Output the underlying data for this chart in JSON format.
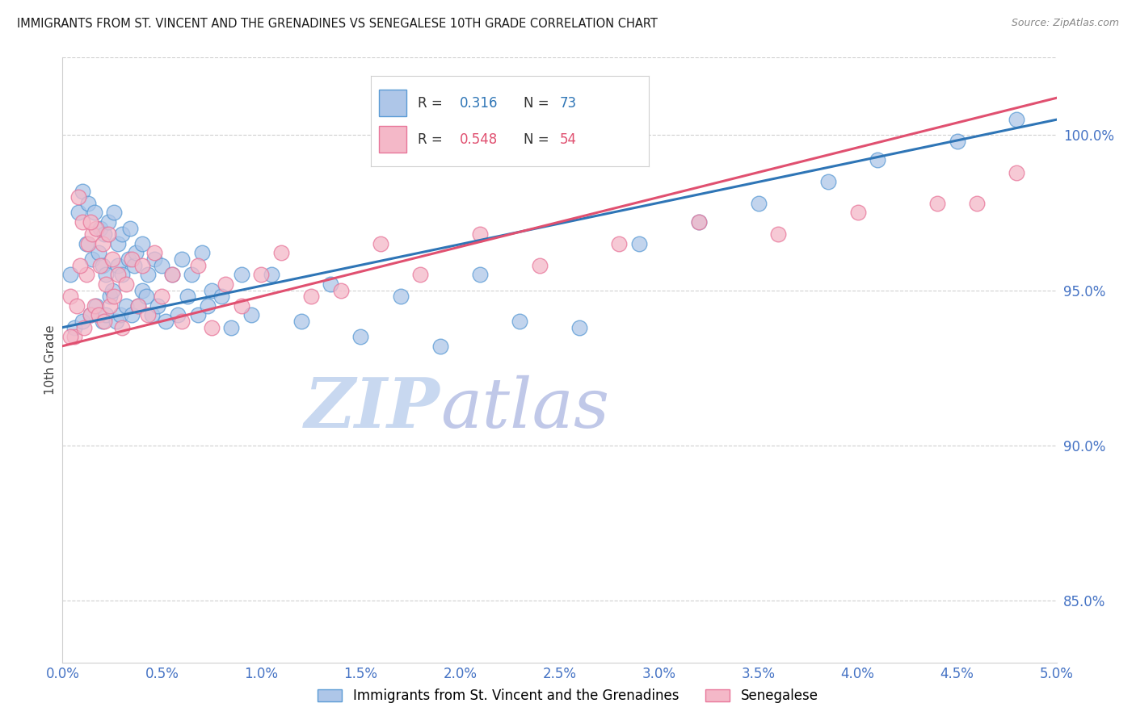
{
  "title": "IMMIGRANTS FROM ST. VINCENT AND THE GRENADINES VS SENEGALESE 10TH GRADE CORRELATION CHART",
  "source_text": "Source: ZipAtlas.com",
  "ylabel": "10th Grade",
  "x_min": 0.0,
  "x_max": 5.0,
  "y_min": 83.0,
  "y_max": 102.5,
  "yticks": [
    85.0,
    90.0,
    95.0,
    100.0
  ],
  "xticks": [
    0.0,
    0.5,
    1.0,
    1.5,
    2.0,
    2.5,
    3.0,
    3.5,
    4.0,
    4.5,
    5.0
  ],
  "blue_R": 0.316,
  "blue_N": 73,
  "pink_R": 0.548,
  "pink_N": 54,
  "blue_color": "#aec6e8",
  "blue_edge": "#5b9bd5",
  "pink_color": "#f4b8c8",
  "pink_edge": "#e8769a",
  "blue_line_color": "#2e75b6",
  "pink_line_color": "#e05070",
  "grid_color": "#d0d0d0",
  "axis_color": "#4472c4",
  "watermark_zip_color": "#c8d8f0",
  "watermark_atlas_color": "#c0c8e8",
  "legend_label_blue": "Immigrants from St. Vincent and the Grenadines",
  "legend_label_pink": "Senegalese",
  "blue_line_x0": 0.0,
  "blue_line_y0": 93.8,
  "blue_line_x1": 5.0,
  "blue_line_y1": 100.5,
  "pink_line_x0": 0.0,
  "pink_line_y0": 93.2,
  "pink_line_x1": 5.0,
  "pink_line_y1": 101.2,
  "blue_x": [
    0.04,
    0.06,
    0.08,
    0.1,
    0.1,
    0.12,
    0.13,
    0.14,
    0.15,
    0.16,
    0.17,
    0.18,
    0.19,
    0.2,
    0.2,
    0.21,
    0.22,
    0.22,
    0.23,
    0.24,
    0.25,
    0.26,
    0.27,
    0.28,
    0.28,
    0.29,
    0.3,
    0.3,
    0.32,
    0.33,
    0.34,
    0.35,
    0.36,
    0.37,
    0.38,
    0.4,
    0.4,
    0.42,
    0.43,
    0.45,
    0.46,
    0.48,
    0.5,
    0.52,
    0.55,
    0.58,
    0.6,
    0.63,
    0.65,
    0.68,
    0.7,
    0.73,
    0.75,
    0.8,
    0.85,
    0.9,
    0.95,
    1.05,
    1.2,
    1.35,
    1.5,
    1.7,
    1.9,
    2.1,
    2.3,
    2.6,
    2.9,
    3.2,
    3.5,
    3.85,
    4.1,
    4.5,
    4.8
  ],
  "blue_y": [
    95.5,
    93.8,
    97.5,
    98.2,
    94.0,
    96.5,
    97.8,
    94.2,
    96.0,
    97.5,
    94.5,
    96.2,
    97.0,
    94.0,
    95.8,
    96.8,
    94.2,
    95.5,
    97.2,
    94.8,
    95.0,
    97.5,
    94.0,
    95.8,
    96.5,
    94.2,
    95.5,
    96.8,
    94.5,
    96.0,
    97.0,
    94.2,
    95.8,
    96.2,
    94.5,
    95.0,
    96.5,
    94.8,
    95.5,
    94.2,
    96.0,
    94.5,
    95.8,
    94.0,
    95.5,
    94.2,
    96.0,
    94.8,
    95.5,
    94.2,
    96.2,
    94.5,
    95.0,
    94.8,
    93.8,
    95.5,
    94.2,
    95.5,
    94.0,
    95.2,
    93.5,
    94.8,
    93.2,
    95.5,
    94.0,
    93.8,
    96.5,
    97.2,
    97.8,
    98.5,
    99.2,
    99.8,
    100.5
  ],
  "pink_x": [
    0.04,
    0.06,
    0.08,
    0.1,
    0.12,
    0.13,
    0.14,
    0.15,
    0.16,
    0.17,
    0.18,
    0.19,
    0.2,
    0.21,
    0.22,
    0.23,
    0.24,
    0.25,
    0.26,
    0.28,
    0.3,
    0.32,
    0.35,
    0.38,
    0.4,
    0.43,
    0.46,
    0.5,
    0.55,
    0.6,
    0.68,
    0.75,
    0.82,
    0.9,
    1.0,
    1.1,
    1.25,
    1.4,
    1.6,
    1.8,
    2.1,
    2.4,
    2.8,
    3.2,
    3.6,
    4.0,
    4.4,
    4.8,
    0.04,
    0.07,
    0.09,
    0.11,
    0.14,
    4.6
  ],
  "pink_y": [
    94.8,
    93.5,
    98.0,
    97.2,
    95.5,
    96.5,
    94.2,
    96.8,
    94.5,
    97.0,
    94.2,
    95.8,
    96.5,
    94.0,
    95.2,
    96.8,
    94.5,
    96.0,
    94.8,
    95.5,
    93.8,
    95.2,
    96.0,
    94.5,
    95.8,
    94.2,
    96.2,
    94.8,
    95.5,
    94.0,
    95.8,
    93.8,
    95.2,
    94.5,
    95.5,
    96.2,
    94.8,
    95.0,
    96.5,
    95.5,
    96.8,
    95.8,
    96.5,
    97.2,
    96.8,
    97.5,
    97.8,
    98.8,
    93.5,
    94.5,
    95.8,
    93.8,
    97.2,
    97.8
  ]
}
